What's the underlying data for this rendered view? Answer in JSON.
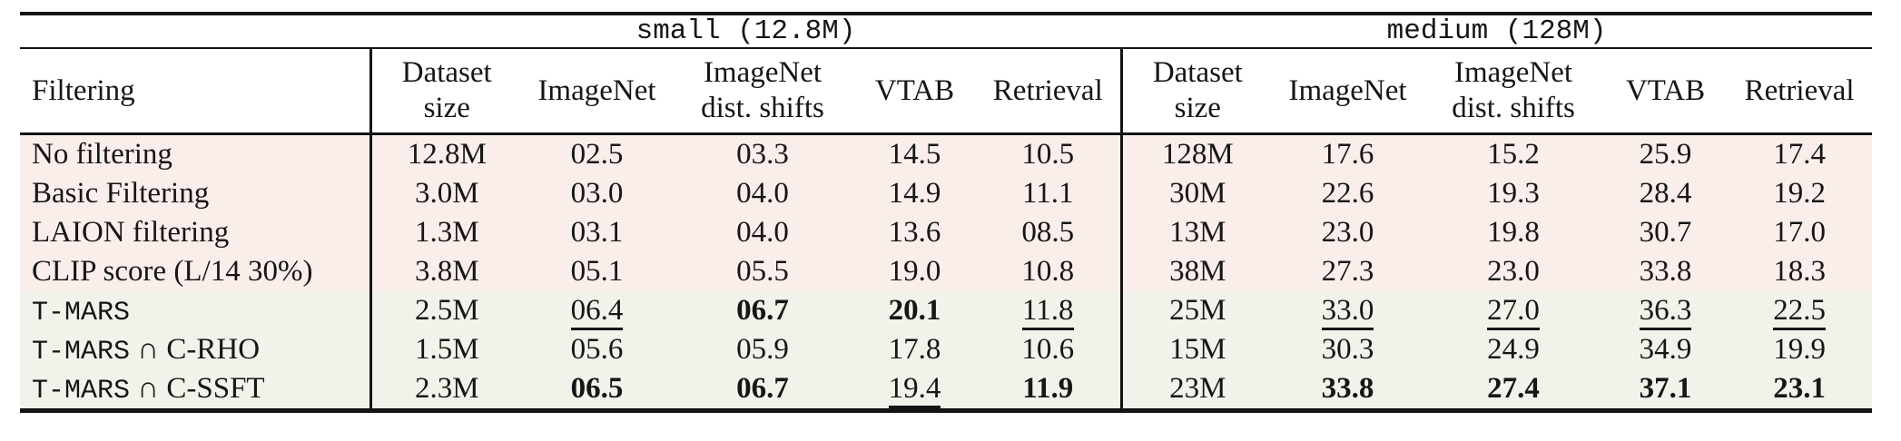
{
  "table": {
    "groups": [
      {
        "label": "small (12.8M)"
      },
      {
        "label": "medium (128M)"
      }
    ],
    "row_header": "Filtering",
    "columns": [
      "Dataset\nsize",
      "ImageNet",
      "ImageNet\ndist. shifts",
      "VTAB",
      "Retrieval"
    ],
    "band_colors": {
      "pink": "#faeeea",
      "green": "#eff3e9"
    },
    "rows": [
      {
        "band": "pink",
        "label": [
          {
            "t": "No filtering",
            "mono": false
          }
        ],
        "small": [
          {
            "v": "12.8M"
          },
          {
            "v": "02.5"
          },
          {
            "v": "03.3"
          },
          {
            "v": "14.5"
          },
          {
            "v": "10.5"
          }
        ],
        "medium": [
          {
            "v": "128M"
          },
          {
            "v": "17.6"
          },
          {
            "v": "15.2"
          },
          {
            "v": "25.9"
          },
          {
            "v": "17.4"
          }
        ]
      },
      {
        "band": "pink",
        "label": [
          {
            "t": "Basic Filtering",
            "mono": false
          }
        ],
        "small": [
          {
            "v": "3.0M"
          },
          {
            "v": "03.0"
          },
          {
            "v": "04.0"
          },
          {
            "v": "14.9"
          },
          {
            "v": "11.1"
          }
        ],
        "medium": [
          {
            "v": "30M"
          },
          {
            "v": "22.6"
          },
          {
            "v": "19.3"
          },
          {
            "v": "28.4"
          },
          {
            "v": "19.2"
          }
        ]
      },
      {
        "band": "pink",
        "label": [
          {
            "t": "LAION filtering",
            "mono": false
          }
        ],
        "small": [
          {
            "v": "1.3M"
          },
          {
            "v": "03.1"
          },
          {
            "v": "04.0"
          },
          {
            "v": "13.6"
          },
          {
            "v": "08.5"
          }
        ],
        "medium": [
          {
            "v": "13M"
          },
          {
            "v": "23.0"
          },
          {
            "v": "19.8"
          },
          {
            "v": "30.7"
          },
          {
            "v": "17.0"
          }
        ]
      },
      {
        "band": "pink",
        "label": [
          {
            "t": "CLIP score (L/14 30%)",
            "mono": false
          }
        ],
        "small": [
          {
            "v": "3.8M"
          },
          {
            "v": "05.1"
          },
          {
            "v": "05.5"
          },
          {
            "v": "19.0"
          },
          {
            "v": "10.8"
          }
        ],
        "medium": [
          {
            "v": "38M"
          },
          {
            "v": "27.3"
          },
          {
            "v": "23.0"
          },
          {
            "v": "33.8"
          },
          {
            "v": "18.3"
          }
        ]
      },
      {
        "band": "green",
        "label": [
          {
            "t": "T-MARS",
            "mono": true
          }
        ],
        "small": [
          {
            "v": "2.5M"
          },
          {
            "v": "06.4",
            "u": true
          },
          {
            "v": "06.7",
            "b": true
          },
          {
            "v": "20.1",
            "b": true
          },
          {
            "v": "11.8",
            "u": true
          }
        ],
        "medium": [
          {
            "v": "25M"
          },
          {
            "v": "33.0",
            "u": true
          },
          {
            "v": "27.0",
            "u": true
          },
          {
            "v": "36.3",
            "u": true
          },
          {
            "v": "22.5",
            "u": true
          }
        ]
      },
      {
        "band": "green",
        "label": [
          {
            "t": "T-MARS",
            "mono": true
          },
          {
            "t": " ∩ C-RHO",
            "mono": false
          }
        ],
        "small": [
          {
            "v": "1.5M"
          },
          {
            "v": "05.6"
          },
          {
            "v": "05.9"
          },
          {
            "v": "17.8"
          },
          {
            "v": "10.6"
          }
        ],
        "medium": [
          {
            "v": "15M"
          },
          {
            "v": "30.3"
          },
          {
            "v": "24.9"
          },
          {
            "v": "34.9"
          },
          {
            "v": "19.9"
          }
        ]
      },
      {
        "band": "green",
        "label": [
          {
            "t": "T-MARS",
            "mono": true
          },
          {
            "t": " ∩ C-SSFT",
            "mono": false
          }
        ],
        "small": [
          {
            "v": "2.3M"
          },
          {
            "v": "06.5",
            "b": true
          },
          {
            "v": "06.7",
            "b": true
          },
          {
            "v": "19.4",
            "u": true
          },
          {
            "v": "11.9",
            "b": true
          }
        ],
        "medium": [
          {
            "v": "23M"
          },
          {
            "v": "33.8",
            "b": true
          },
          {
            "v": "27.4",
            "b": true
          },
          {
            "v": "37.1",
            "b": true
          },
          {
            "v": "23.1",
            "b": true
          }
        ]
      }
    ]
  }
}
